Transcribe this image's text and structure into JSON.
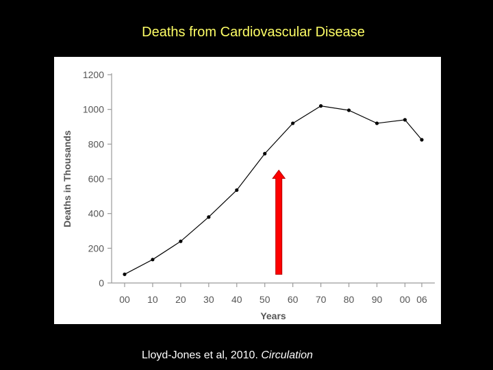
{
  "slide": {
    "title": "Deaths from Cardiovascular Disease",
    "citation_main": "Lloyd-Jones et al, 2010. ",
    "citation_journal": "Circulation"
  },
  "colors": {
    "background": "#000000",
    "title": "#ffff66",
    "line": "#000000",
    "arrow": "#ff0000",
    "arrow_border": "#b30000"
  },
  "chart_data": {
    "type": "line",
    "title": "",
    "xlabel": "Years",
    "ylabel": "Deaths in Thousands",
    "categories": [
      "00",
      "10",
      "20",
      "30",
      "40",
      "50",
      "60",
      "70",
      "80",
      "90",
      "00",
      "06"
    ],
    "x": [
      1900,
      1910,
      1920,
      1930,
      1940,
      1950,
      1960,
      1970,
      1980,
      1990,
      2000,
      2006
    ],
    "series": [
      {
        "values": [
          50,
          135,
          240,
          380,
          535,
          745,
          920,
          1020,
          995,
          920,
          940,
          825
        ]
      }
    ],
    "ylim": [
      0,
      1200
    ],
    "yticks": [
      0,
      200,
      400,
      600,
      800,
      1000,
      1200
    ],
    "grid": false,
    "annotation": {
      "type": "arrow",
      "direction": "up",
      "x": 1955,
      "from_y": 50,
      "to_y": 650
    }
  }
}
